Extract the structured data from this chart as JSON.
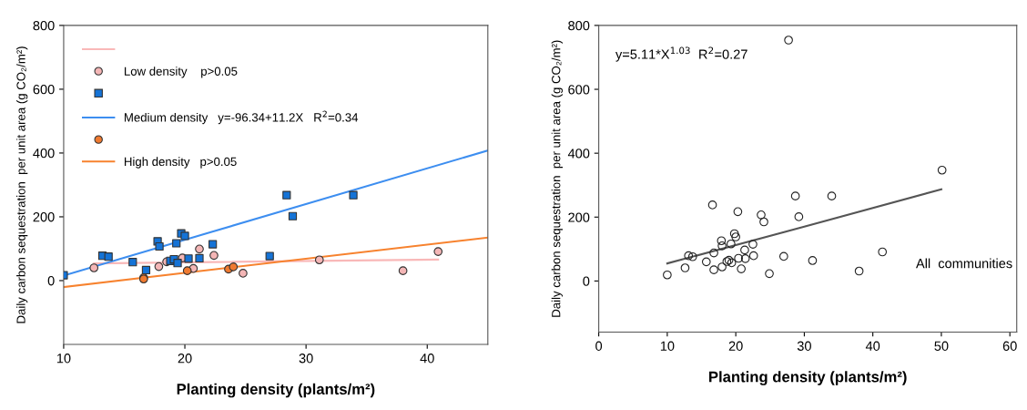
{
  "chart_data": [
    {
      "type": "scatter",
      "xlabel": "Planting density (plants/m²)",
      "ylabel": "Daily carbon sequestration  per unit area (g CO₂/m²)",
      "xlim": [
        10,
        45
      ],
      "xticks": [
        10,
        20,
        30,
        40
      ],
      "ylim": [
        -200,
        800
      ],
      "yticks": [
        0,
        200,
        400,
        600,
        800
      ],
      "legend": "top left",
      "grid": false,
      "series": [
        {
          "type": "line",
          "color": "#f9b8b8",
          "x": [
            12.5,
            40.9
          ],
          "values": [
            54,
            66
          ]
        },
        {
          "name": "Low density    p>0.05",
          "color": "#f4b6b6",
          "marker": "circle",
          "x": [
            12.5,
            17.85,
            18.5,
            19.8,
            20.7,
            21.2,
            22.4,
            24.8,
            31.1,
            38.0,
            40.9
          ],
          "values": [
            40,
            44,
            59,
            71,
            38,
            99,
            79,
            23,
            65,
            31,
            91
          ]
        },
        {
          "color": "#1573d6",
          "marker": "square",
          "x": [
            10.0,
            13.2,
            13.7,
            15.7,
            16.8,
            17.75,
            17.9,
            18.8,
            19.1,
            19.3,
            19.4,
            19.7,
            20.0,
            20.3,
            21.2,
            22.3,
            27.0,
            28.4,
            28.9,
            33.9
          ],
          "values": [
            17,
            78,
            75,
            58,
            33,
            123,
            107,
            62,
            67,
            117,
            55,
            148,
            140,
            69,
            70,
            114,
            77,
            268,
            202,
            268
          ]
        },
        {
          "type": "line",
          "name": "Medium density   y=-96.34+11.2X   R$^{2}$=0.34",
          "color": "#3d8ef0",
          "x": [
            10,
            45
          ],
          "values": [
            16,
            408
          ]
        },
        {
          "color": "#f07a30",
          "marker": "circle",
          "x": [
            16.6,
            16.6,
            20.2,
            23.6,
            24.0
          ],
          "values": [
            9,
            5,
            31,
            36,
            43
          ]
        },
        {
          "type": "line",
          "name": "High density   p>0.05",
          "color": "#f7822e",
          "x": [
            10,
            45
          ],
          "values": [
            -20,
            135
          ]
        }
      ]
    },
    {
      "type": "scatter",
      "xlabel": "Planting density (plants/m²)",
      "ylabel": "Daily carbon sequestration  per unit area (g CO₂/m²)",
      "xlim": [
        0,
        61
      ],
      "xticks": [
        0,
        10,
        20,
        30,
        40,
        50,
        60
      ],
      "ylim": [
        -160,
        800
      ],
      "yticks": [
        0,
        200,
        400,
        600,
        800
      ],
      "grid": false,
      "annotations": [
        "y=5.11*X$^{1.03}$  R$^{2}$=0.27",
        "All  communities"
      ],
      "series": [
        {
          "color": "#222222",
          "marker": "circle",
          "x": [
            10.0,
            12.6,
            13.1,
            13.7,
            15.7,
            16.6,
            16.8,
            16.8,
            17.9,
            18.0,
            18.0,
            18.7,
            19.0,
            19.3,
            19.4,
            19.8,
            20.0,
            20.3,
            20.4,
            20.8,
            21.3,
            21.4,
            22.5,
            22.6,
            23.7,
            24.1,
            24.9,
            27.0,
            27.7,
            28.7,
            29.2,
            31.2,
            34.0,
            38.0,
            41.4,
            50.1
          ],
          "values": [
            19,
            41,
            79,
            76,
            60,
            238,
            88,
            35,
            126,
            110,
            44,
            61,
            65,
            116,
            57,
            148,
            138,
            217,
            71,
            38,
            97,
            70,
            115,
            79,
            207,
            185,
            23,
            77,
            754,
            266,
            201,
            64,
            266,
            31,
            91,
            347
          ]
        },
        {
          "type": "line",
          "color": "#555555",
          "x": [
            10,
            30,
            50
          ],
          "values": [
            55,
            170,
            287
          ]
        }
      ]
    }
  ]
}
